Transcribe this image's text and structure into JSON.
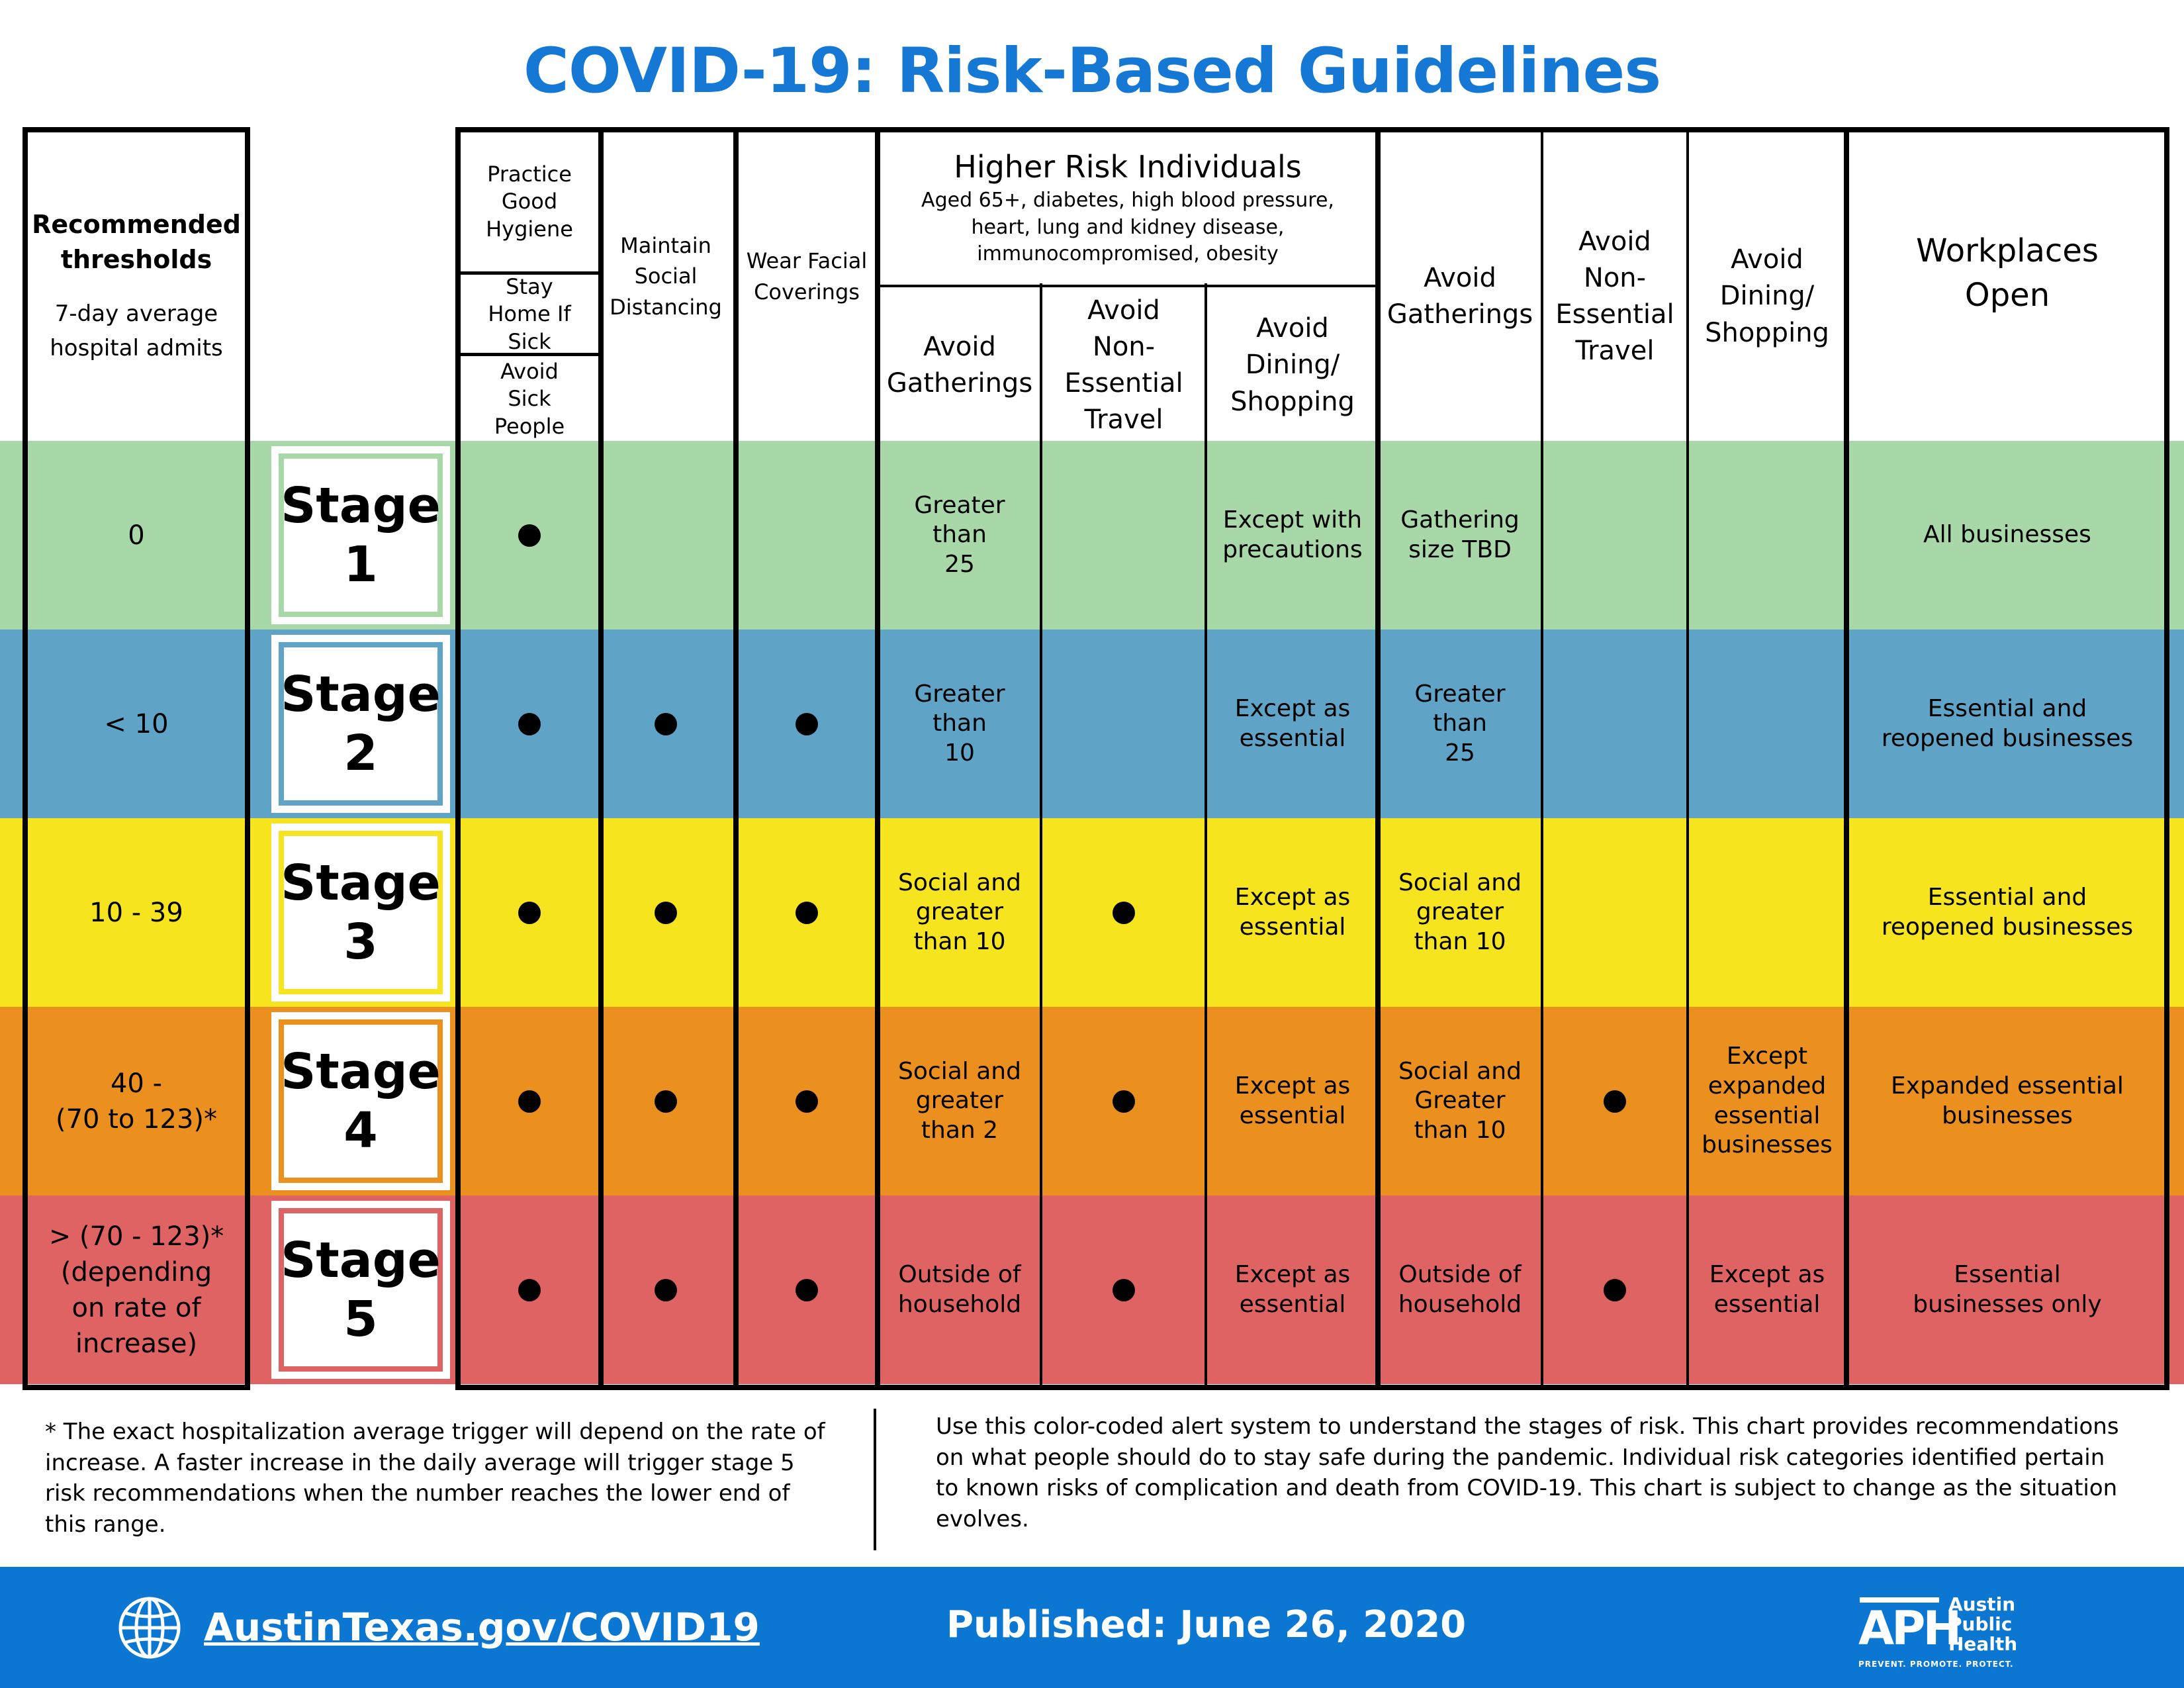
{
  "title": "COVID-19: Risk-Based Guidelines",
  "header": {
    "thresholds_title": "Recommended thresholds",
    "thresholds_sub": "7-day average hospital admits",
    "hygiene": "Practice Good Hygiene",
    "stay_home": "Stay Home If Sick",
    "avoid_sick": "Avoid Sick People",
    "social_distancing": "Maintain Social Distancing",
    "facial_coverings": "Wear Facial Coverings",
    "higher_risk_title": "Higher Risk Individuals",
    "higher_risk_sub": "Aged 65+, diabetes, high blood pressure, heart, lung and kidney disease, immunocompromised, obesity",
    "hr_gatherings": "Avoid Gatherings",
    "hr_travel": "Avoid Non-Essential Travel",
    "hr_dining": "Avoid Dining/ Shopping",
    "gatherings": "Avoid Gatherings",
    "travel": "Avoid Non-Essential Travel",
    "dining": "Avoid Dining/ Shopping",
    "workplaces": "Workplaces Open"
  },
  "colors": {
    "stage1": "#a8d8a8",
    "stage2": "#5fa4c6",
    "stage3": "#f5e41e",
    "stage4": "#eb901f",
    "stage5": "#e06363",
    "title": "#1478d4",
    "footer_bar": "#0c77d2"
  },
  "rows": [
    {
      "threshold": "0",
      "stage": "Stage\n1",
      "hygiene": true,
      "distancing": false,
      "coverings": false,
      "hr_gatherings": "Greater\nthan\n25",
      "hr_travel": false,
      "hr_dining": "Except with\nprecautions",
      "gatherings": "Gathering\nsize TBD",
      "travel": false,
      "dining": "",
      "workplaces": "All businesses"
    },
    {
      "threshold": "< 10",
      "stage": "Stage\n2",
      "hygiene": true,
      "distancing": true,
      "coverings": true,
      "hr_gatherings": "Greater\nthan\n10",
      "hr_travel": false,
      "hr_dining": "Except as\nessential",
      "gatherings": "Greater\nthan\n25",
      "travel": false,
      "dining": "",
      "workplaces": "Essential and\nreopened businesses"
    },
    {
      "threshold": "10 - 39",
      "stage": "Stage\n3",
      "hygiene": true,
      "distancing": true,
      "coverings": true,
      "hr_gatherings": "Social and\ngreater\nthan 10",
      "hr_travel": true,
      "hr_dining": "Except as\nessential",
      "gatherings": "Social and\ngreater\nthan 10",
      "travel": false,
      "dining": "",
      "workplaces": "Essential and\nreopened businesses"
    },
    {
      "threshold": "40 -\n(70 to 123)*",
      "stage": "Stage\n4",
      "hygiene": true,
      "distancing": true,
      "coverings": true,
      "hr_gatherings": "Social and\ngreater\nthan 2",
      "hr_travel": true,
      "hr_dining": "Except as\nessential",
      "gatherings": "Social and\nGreater\nthan 10",
      "travel": true,
      "dining": "Except\nexpanded\nessential\nbusinesses",
      "workplaces": "Expanded essential\nbusinesses"
    },
    {
      "threshold": "> (70 - 123)*\n(depending\non rate of\nincrease)",
      "stage": "Stage\n5",
      "hygiene": true,
      "distancing": true,
      "coverings": true,
      "hr_gatherings": "Outside of\nhousehold",
      "hr_travel": true,
      "hr_dining": "Except as\nessential",
      "gatherings": "Outside of\nhousehold",
      "travel": true,
      "dining": "Except as\nessential",
      "workplaces": "Essential\nbusinesses only"
    }
  ],
  "footnote": "* The exact hospitalization average trigger will depend on the rate of increase. A faster increase in the daily average will trigger stage 5 risk recommendations when the number reaches the lower end of this range.",
  "description": "Use this color-coded alert system to understand the stages of risk. This chart provides recommendations on what people should do to stay safe during the pandemic. Individual risk categories identified pertain to known risks of complication and death from COVID-19. This chart is subject to change as the situation evolves.",
  "footer": {
    "url": "AustinTexas.gov/COVID19",
    "published": "Published: June 26, 2020",
    "logo_letters": "APH",
    "logo_name_1": "Austin",
    "logo_name_2": "Public",
    "logo_name_3": "Health",
    "tagline": "PREVENT. PROMOTE. PROTECT."
  }
}
